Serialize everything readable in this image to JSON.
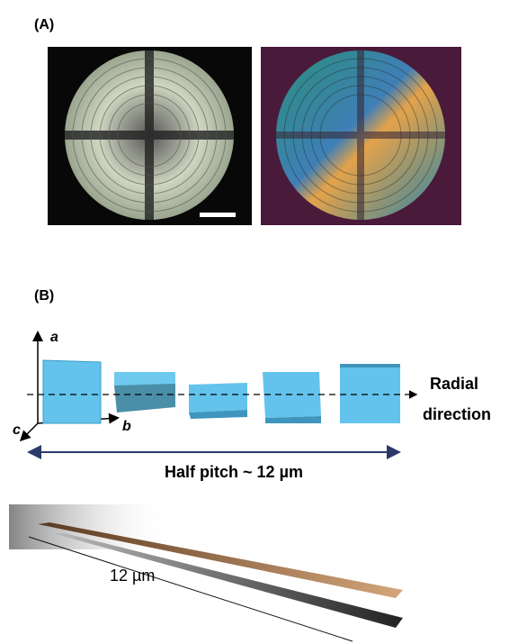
{
  "panel_a": {
    "label": "(A)"
  },
  "panel_b": {
    "label": "(B)",
    "axes": {
      "a": "a",
      "b": "b",
      "c": "c"
    },
    "direction_label": [
      "Radial",
      "direction"
    ],
    "pitch_label": "Half pitch ~ 12 µm"
  },
  "ribbon": {
    "length_label": "12 µm"
  }
}
